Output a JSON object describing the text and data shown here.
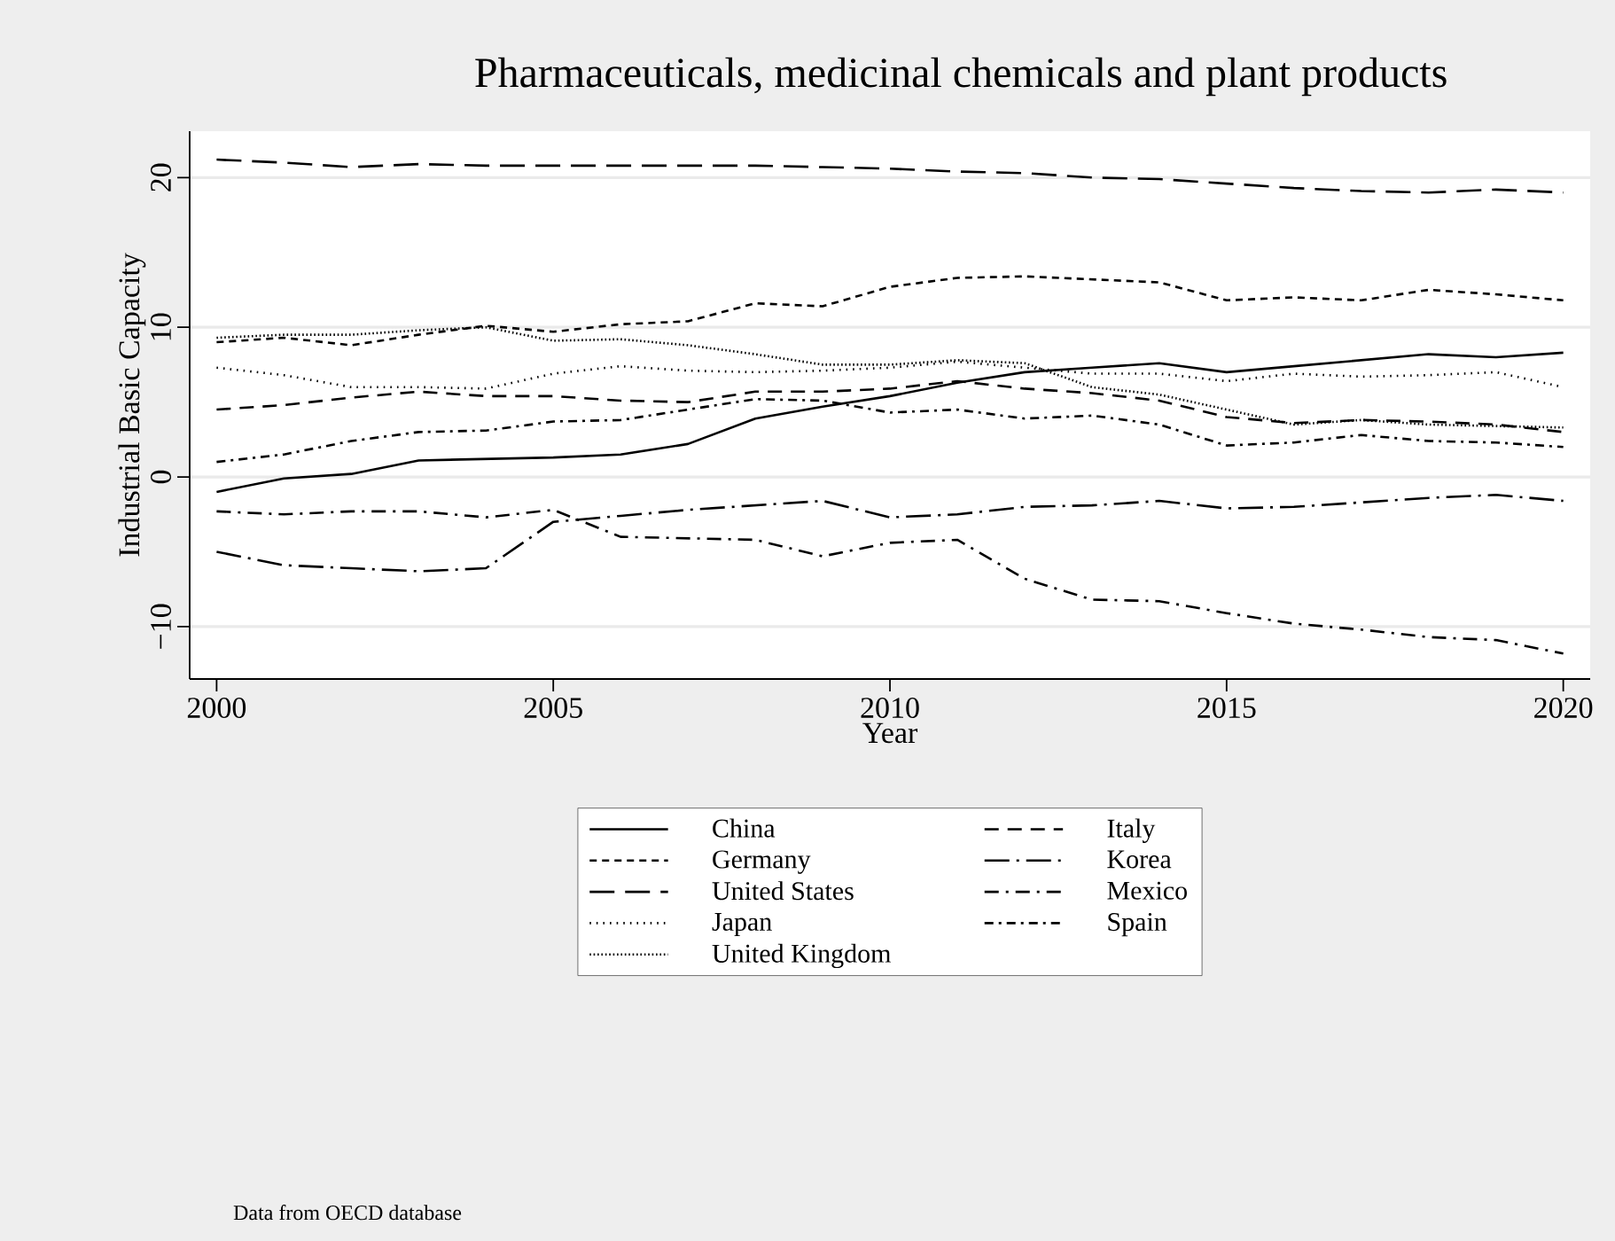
{
  "chart_data": {
    "type": "line",
    "title": "Pharmaceuticals, medicinal chemicals and plant products",
    "xlabel": "Year",
    "ylabel": "Industrial Basic Capacity",
    "x": [
      2000,
      2001,
      2002,
      2003,
      2004,
      2005,
      2006,
      2007,
      2008,
      2009,
      2010,
      2011,
      2012,
      2013,
      2014,
      2015,
      2016,
      2017,
      2018,
      2019,
      2020
    ],
    "xlim": [
      1999.6,
      2020.4
    ],
    "xticks": [
      2000,
      2005,
      2010,
      2015,
      2020
    ],
    "ylim": [
      -13.5,
      23.1
    ],
    "yticks": [
      {
        "value": -10,
        "label": "−10"
      },
      0,
      10,
      20
    ],
    "grid": "y",
    "legend": "bottom",
    "annotations": [
      "Data from OECD database"
    ],
    "series": [
      {
        "name": "China",
        "color": "#000000",
        "line_style": "solid",
        "values": [
          -1.0,
          -0.1,
          0.2,
          1.1,
          1.2,
          1.3,
          1.5,
          2.2,
          3.9,
          4.7,
          5.4,
          6.3,
          7.0,
          7.3,
          7.6,
          7.0,
          7.4,
          7.8,
          8.2,
          8.0,
          8.3
        ]
      },
      {
        "name": "Germany",
        "color": "#000000",
        "line_style": "dashed",
        "values": [
          9.0,
          9.3,
          8.8,
          9.5,
          10.1,
          9.7,
          10.2,
          10.4,
          11.6,
          11.4,
          12.7,
          13.3,
          13.4,
          13.2,
          13.0,
          11.8,
          12.0,
          11.8,
          12.5,
          12.2,
          11.8
        ]
      },
      {
        "name": "United States",
        "color": "#000000",
        "line_style": "longdashed",
        "values": [
          21.2,
          21.0,
          20.7,
          20.9,
          20.8,
          20.8,
          20.8,
          20.8,
          20.8,
          20.7,
          20.6,
          20.4,
          20.3,
          20.0,
          19.9,
          19.6,
          19.3,
          19.1,
          19.0,
          19.2,
          19.0
        ]
      },
      {
        "name": "Japan",
        "color": "#000000",
        "line_style": "dotted",
        "values": [
          7.3,
          6.8,
          6.0,
          6.0,
          5.9,
          6.9,
          7.4,
          7.1,
          7.0,
          7.1,
          7.3,
          7.7,
          7.3,
          6.9,
          6.9,
          6.4,
          6.9,
          6.7,
          6.8,
          7.0,
          6.0
        ]
      },
      {
        "name": "United Kingdom",
        "color": "#000000",
        "line_style": "densely dotted",
        "values": [
          9.3,
          9.5,
          9.5,
          9.8,
          10.0,
          9.1,
          9.2,
          8.8,
          8.2,
          7.5,
          7.5,
          7.8,
          7.6,
          6.0,
          5.5,
          4.5,
          3.5,
          3.8,
          3.5,
          3.4,
          3.3
        ]
      },
      {
        "name": "Italy",
        "color": "#000000",
        "line_style": "mediumdashed",
        "values": [
          4.5,
          4.8,
          5.3,
          5.7,
          5.4,
          5.4,
          5.1,
          5.0,
          5.7,
          5.7,
          5.9,
          6.4,
          5.9,
          5.6,
          5.1,
          4.0,
          3.6,
          3.8,
          3.7,
          3.5,
          3.0
        ]
      },
      {
        "name": "Korea",
        "color": "#000000",
        "line_style": "longdashdot",
        "values": [
          -5.0,
          -5.9,
          -6.1,
          -6.3,
          -6.1,
          -3.0,
          -2.6,
          -2.2,
          -1.9,
          -1.6,
          -2.7,
          -2.5,
          -2.0,
          -1.9,
          -1.6,
          -2.1,
          -2.0,
          -1.7,
          -1.4,
          -1.2,
          -1.6
        ]
      },
      {
        "name": "Mexico",
        "color": "#000000",
        "line_style": "dashdot",
        "values": [
          -2.3,
          -2.5,
          -2.3,
          -2.3,
          -2.7,
          -2.2,
          -4.0,
          -4.1,
          -4.2,
          -5.3,
          -4.4,
          -4.2,
          -6.8,
          -8.2,
          -8.3,
          -9.1,
          -9.8,
          -10.2,
          -10.7,
          -10.9,
          -11.8
        ]
      },
      {
        "name": "Spain",
        "color": "#000000",
        "line_style": "shortdashdot",
        "values": [
          1.0,
          1.5,
          2.4,
          3.0,
          3.1,
          3.7,
          3.8,
          4.5,
          5.2,
          5.1,
          4.3,
          4.5,
          3.9,
          4.1,
          3.5,
          2.1,
          2.3,
          2.8,
          2.4,
          2.3,
          2.0
        ]
      }
    ]
  }
}
